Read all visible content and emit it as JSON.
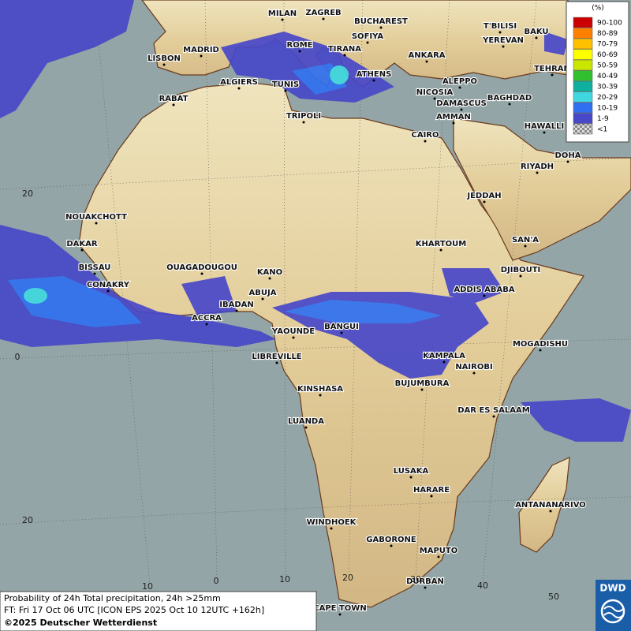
{
  "legend": {
    "title": "(%)",
    "entries": [
      {
        "label": "90-100",
        "color": "#cc0000"
      },
      {
        "label": "80-89",
        "color": "#ff7f00"
      },
      {
        "label": "70-79",
        "color": "#ffc000"
      },
      {
        "label": "60-69",
        "color": "#ffff00"
      },
      {
        "label": "50-59",
        "color": "#c8e600"
      },
      {
        "label": "40-49",
        "color": "#30c030"
      },
      {
        "label": "30-39",
        "color": "#10b0a0"
      },
      {
        "label": "20-29",
        "color": "#40d8e0"
      },
      {
        "label": "10-19",
        "color": "#3070f0"
      },
      {
        "label": "1-9",
        "color": "#4848c8"
      },
      {
        "label": "<1",
        "color": "#b0b0b0"
      }
    ]
  },
  "cities": [
    "MILAN",
    "ZAGREB",
    "BUCHAREST",
    "T'BILISI",
    "BAKU",
    "SOFIYA",
    "YEREVAN",
    "MADRID",
    "ROME",
    "TIRANA",
    "ANKARA",
    "LISBON",
    "TEHRAN",
    "ALGIERS",
    "TUNIS",
    "ATHENS",
    "ALEPPO",
    "NICOSIA",
    "BAGHDAD",
    "RABAT",
    "DAMASCUS",
    "TRIPOLI",
    "AMMAN",
    "HAWALLI",
    "CAIRO",
    "DOHA",
    "RIYADH",
    "JEDDAH",
    "NOUAKCHOTT",
    "DAKAR",
    "KHARTOUM",
    "SAN'A",
    "BISSAU",
    "OUAGADOUGOU",
    "DJIBOUTI",
    "KANO",
    "CONAKRY",
    "ABUJA",
    "ADDIS ABABA",
    "IBADAN",
    "ACCRA",
    "BANGUI",
    "YAOUNDE",
    "MOGADISHU",
    "LIBREVILLE",
    "KAMPALA",
    "NAIROBI",
    "KINSHASA",
    "BUJUMBURA",
    "DAR ES SALAAM",
    "LUANDA",
    "LUSAKA",
    "HARARE",
    "ANTANANARIVO",
    "WINDHOEK",
    "GABORONE",
    "MAPUTO",
    "DURBAN",
    "CAPE TOWN"
  ],
  "grid_labels": [
    "20",
    "0",
    "20",
    "10",
    "0",
    "10",
    "20",
    "30",
    "40",
    "50"
  ],
  "footer": {
    "line1": "Probability of 24h Total precipitation, 24h >25mm",
    "line2": "FT: Fri 17 Oct 06 UTC [ICON EPS 2025 Oct 10 12UTC +162h]",
    "line3": "©2025 Deutscher Wetterdienst"
  },
  "logo": "DWD"
}
